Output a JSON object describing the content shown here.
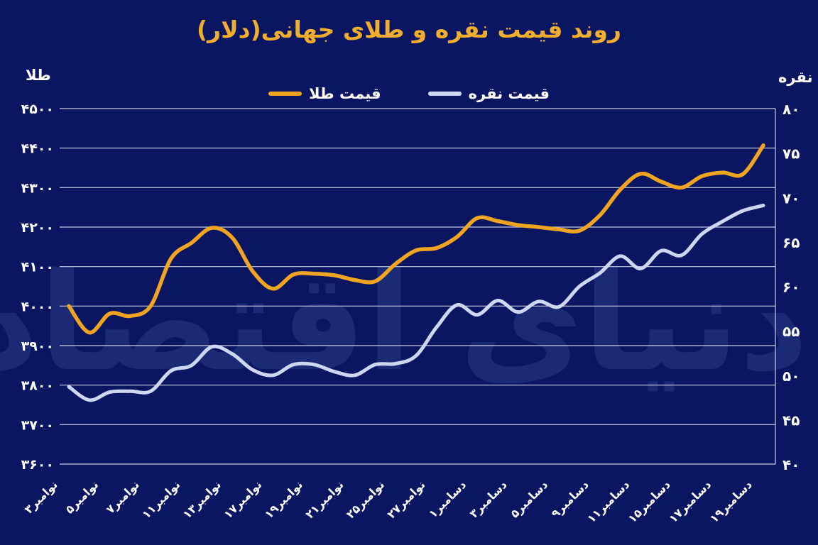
{
  "title": "روند قیمت نقره و طلای جهانی(دلار)",
  "watermark_text": "دنیای اقتصاد",
  "colors": {
    "background": "#0b1663",
    "title": "#f0ae2c",
    "gold_line": "#f0a41f",
    "silver_line": "#cdd7f0",
    "grid_line": "#e9edf9",
    "axis_text": "#ffffff",
    "watermark": "#2c3e86"
  },
  "axes": {
    "left_title": "طلا",
    "right_title": "نقره"
  },
  "legend": {
    "items": [
      {
        "label": "قیمت طلا",
        "series": "gold"
      },
      {
        "label": "قیمت نقره",
        "series": "silver"
      }
    ]
  },
  "chart_data": {
    "type": "line",
    "title": "روند قیمت نقره و طلای جهانی(دلار)",
    "legend_position": "top",
    "grid": "horizontal",
    "x_tick_labels": [
      "۳نوامبر",
      "۵نوامبر",
      "۷نوامبر",
      "۱۱نوامبر",
      "۱۳نوامبر",
      "۱۷نوامبر",
      "۱۹نوامبر",
      "۲۱نوامبر",
      "۲۵نوامبر",
      "۲۷نوامبر",
      "۱دسامبر",
      "۳دسامبر",
      "۵دسامبر",
      "۹دسامبر",
      "۱۱دسامبر",
      "۱۵دسامبر",
      "۱۷دسامبر",
      "۱۹دسامبر"
    ],
    "x_tick_point_indices": [
      0,
      2,
      4,
      6,
      8,
      10,
      12,
      14,
      16,
      18,
      20,
      22,
      24,
      26,
      28,
      30,
      32,
      34
    ],
    "left_axis": {
      "title": "طلا",
      "min": 3600,
      "max": 4500,
      "step": 100,
      "tick_labels": [
        "۴۵۰۰",
        "۴۴۰۰",
        "۴۳۰۰",
        "۴۲۰۰",
        "۴۱۰۰",
        "۴۰۰۰",
        "۳۹۰۰",
        "۳۸۰۰",
        "۳۷۰۰",
        "۳۶۰۰"
      ]
    },
    "right_axis": {
      "title": "نقره",
      "min": 40,
      "max": 80,
      "step": 5,
      "tick_labels": [
        "۸۰",
        "۷۵",
        "۷۰",
        "۶۵",
        "۶۰",
        "۵۵",
        "۵۰",
        "۴۵",
        "۴۰"
      ]
    },
    "series": [
      {
        "name": "قیمت طلا",
        "axis": "left",
        "color": "#f0a41f",
        "values": [
          4000,
          3933,
          3981,
          3975,
          4000,
          4120,
          4160,
          4198,
          4173,
          4088,
          4044,
          4080,
          4082,
          4078,
          4066,
          4063,
          4107,
          4141,
          4147,
          4175,
          4223,
          4215,
          4205,
          4200,
          4194,
          4191,
          4230,
          4295,
          4335,
          4315,
          4300,
          4329,
          4338,
          4334,
          4407
        ]
      },
      {
        "name": "قیمت نقره",
        "axis": "right",
        "color": "#cdd7f0",
        "values": [
          48.7,
          47.2,
          48.1,
          48.2,
          48.2,
          50.5,
          51.1,
          53.2,
          52.4,
          50.6,
          50.0,
          51.2,
          51.2,
          50.4,
          50.0,
          51.2,
          51.3,
          52.2,
          55.4,
          57.9,
          56.8,
          58.4,
          57.1,
          58.3,
          57.7,
          60.0,
          61.5,
          63.4,
          62.0,
          64.0,
          63.5,
          65.9,
          67.3,
          68.5,
          69.1
        ]
      }
    ]
  }
}
